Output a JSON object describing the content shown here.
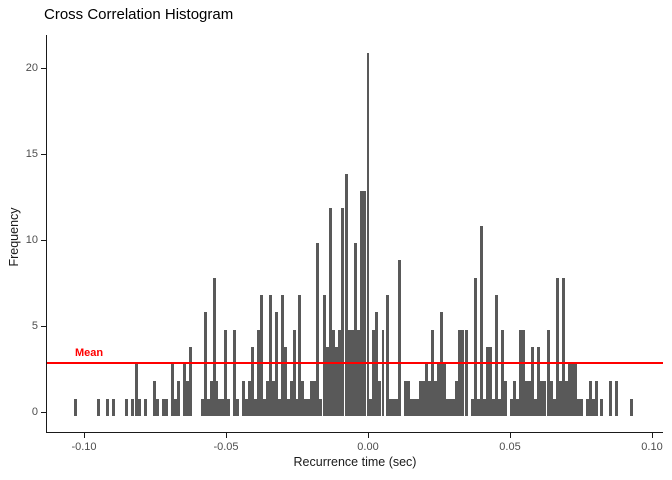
{
  "chart_data": {
    "type": "bar",
    "subtype": "histogram",
    "title": "Cross Correlation Histogram",
    "xlabel": "Recurrence time (sec)",
    "ylabel": "Frequency",
    "xlim": [
      -0.113,
      0.104
    ],
    "ylim": [
      0,
      22
    ],
    "grid": false,
    "bar_color": "#595959",
    "axis_color": "#1a1a1a",
    "tick_label_color": "#4d4d4d",
    "bin_width_sec": 0.001,
    "x_ticks": [
      {
        "value": -0.1,
        "label": "-0.10"
      },
      {
        "value": -0.05,
        "label": "-0.05"
      },
      {
        "value": 0.0,
        "label": "0.00"
      },
      {
        "value": 0.05,
        "label": "0.05"
      },
      {
        "value": 0.1,
        "label": "0.10"
      }
    ],
    "y_ticks": [
      {
        "value": 0,
        "label": "0"
      },
      {
        "value": 5,
        "label": "5"
      },
      {
        "value": 10,
        "label": "10"
      },
      {
        "value": 15,
        "label": "15"
      },
      {
        "value": 20,
        "label": "20"
      }
    ],
    "mean_line": {
      "label": "Mean",
      "value": 3.1,
      "color": "#ff0000"
    },
    "bars": [
      [
        -0.103,
        1
      ],
      [
        -0.0949,
        1
      ],
      [
        -0.0917,
        1
      ],
      [
        -0.0896,
        1
      ],
      [
        -0.0849,
        1
      ],
      [
        -0.0829,
        1
      ],
      [
        -0.0815,
        3
      ],
      [
        -0.0804,
        1
      ],
      [
        -0.0783,
        1
      ],
      [
        -0.0752,
        2
      ],
      [
        -0.0741,
        1
      ],
      [
        -0.072,
        1
      ],
      [
        -0.0709,
        1
      ],
      [
        -0.0688,
        3
      ],
      [
        -0.0678,
        1
      ],
      [
        -0.0667,
        2
      ],
      [
        -0.0646,
        3
      ],
      [
        -0.0636,
        2
      ],
      [
        -0.0625,
        4
      ],
      [
        -0.0583,
        1
      ],
      [
        -0.0572,
        6
      ],
      [
        -0.0562,
        1
      ],
      [
        -0.0551,
        2
      ],
      [
        -0.054,
        8
      ],
      [
        -0.0532,
        2
      ],
      [
        -0.0523,
        1
      ],
      [
        -0.0512,
        1
      ],
      [
        -0.0502,
        5
      ],
      [
        -0.0491,
        1
      ],
      [
        -0.047,
        5
      ],
      [
        -0.0459,
        1
      ],
      [
        -0.0438,
        2
      ],
      [
        -0.0428,
        1
      ],
      [
        -0.0417,
        2
      ],
      [
        -0.0407,
        4
      ],
      [
        -0.0396,
        1
      ],
      [
        -0.0386,
        5
      ],
      [
        -0.0375,
        7
      ],
      [
        -0.0364,
        1
      ],
      [
        -0.0354,
        2
      ],
      [
        -0.0343,
        7
      ],
      [
        -0.0333,
        2
      ],
      [
        -0.0322,
        6
      ],
      [
        -0.0312,
        1
      ],
      [
        -0.0301,
        7
      ],
      [
        -0.029,
        4
      ],
      [
        -0.028,
        1
      ],
      [
        -0.0269,
        2
      ],
      [
        -0.0259,
        5
      ],
      [
        -0.025,
        1
      ],
      [
        -0.0241,
        7
      ],
      [
        -0.0231,
        2
      ],
      [
        -0.022,
        1
      ],
      [
        -0.0209,
        1
      ],
      [
        -0.0199,
        2
      ],
      [
        -0.0188,
        2
      ],
      [
        -0.0178,
        10
      ],
      [
        -0.0167,
        1
      ],
      [
        -0.0153,
        7
      ],
      [
        -0.0143,
        4
      ],
      [
        -0.0132,
        12
      ],
      [
        -0.0121,
        5
      ],
      [
        -0.0111,
        4
      ],
      [
        -0.01,
        5
      ],
      [
        -0.009,
        12
      ],
      [
        -0.0076,
        14
      ],
      [
        -0.0065,
        5
      ],
      [
        -0.0055,
        5
      ],
      [
        -0.0044,
        10
      ],
      [
        -0.0033,
        5
      ],
      [
        -0.0023,
        13
      ],
      [
        -0.0012,
        13
      ],
      [
        0.0,
        21
      ],
      [
        0.0009,
        1
      ],
      [
        0.0019,
        5
      ],
      [
        0.003,
        6
      ],
      [
        0.004,
        2
      ],
      [
        0.0053,
        5
      ],
      [
        0.0069,
        7
      ],
      [
        0.0079,
        1
      ],
      [
        0.009,
        1
      ],
      [
        0.01,
        1
      ],
      [
        0.0111,
        9
      ],
      [
        0.0132,
        2
      ],
      [
        0.0143,
        2
      ],
      [
        0.0153,
        1
      ],
      [
        0.0164,
        1
      ],
      [
        0.0174,
        1
      ],
      [
        0.0185,
        2
      ],
      [
        0.0195,
        2
      ],
      [
        0.0206,
        3
      ],
      [
        0.0217,
        2
      ],
      [
        0.0227,
        5
      ],
      [
        0.0238,
        2
      ],
      [
        0.0248,
        3
      ],
      [
        0.0259,
        6
      ],
      [
        0.0269,
        3
      ],
      [
        0.028,
        1
      ],
      [
        0.029,
        1
      ],
      [
        0.0301,
        1
      ],
      [
        0.0312,
        2
      ],
      [
        0.0322,
        5
      ],
      [
        0.0333,
        5
      ],
      [
        0.0347,
        5
      ],
      [
        0.0368,
        1
      ],
      [
        0.0378,
        8
      ],
      [
        0.0389,
        1
      ],
      [
        0.04,
        11
      ],
      [
        0.041,
        1
      ],
      [
        0.0421,
        4
      ],
      [
        0.0431,
        4
      ],
      [
        0.0442,
        1
      ],
      [
        0.0452,
        7
      ],
      [
        0.0463,
        1
      ],
      [
        0.0474,
        5
      ],
      [
        0.0484,
        2
      ],
      [
        0.0505,
        1
      ],
      [
        0.0516,
        2
      ],
      [
        0.0526,
        1
      ],
      [
        0.0537,
        5
      ],
      [
        0.0547,
        5
      ],
      [
        0.0558,
        2
      ],
      [
        0.0569,
        2
      ],
      [
        0.0579,
        4
      ],
      [
        0.059,
        1
      ],
      [
        0.06,
        4
      ],
      [
        0.0611,
        2
      ],
      [
        0.0621,
        2
      ],
      [
        0.0635,
        5
      ],
      [
        0.0646,
        2
      ],
      [
        0.0657,
        1
      ],
      [
        0.0667,
        8
      ],
      [
        0.0678,
        2
      ],
      [
        0.0688,
        8
      ],
      [
        0.0699,
        2
      ],
      [
        0.0709,
        3
      ],
      [
        0.072,
        3
      ],
      [
        0.0731,
        3
      ],
      [
        0.0741,
        1
      ],
      [
        0.0752,
        1
      ],
      [
        0.0773,
        1
      ],
      [
        0.0783,
        2
      ],
      [
        0.0794,
        1
      ],
      [
        0.0804,
        2
      ],
      [
        0.0822,
        1
      ],
      [
        0.0854,
        2
      ],
      [
        0.0875,
        2
      ],
      [
        0.0928,
        1
      ]
    ]
  }
}
